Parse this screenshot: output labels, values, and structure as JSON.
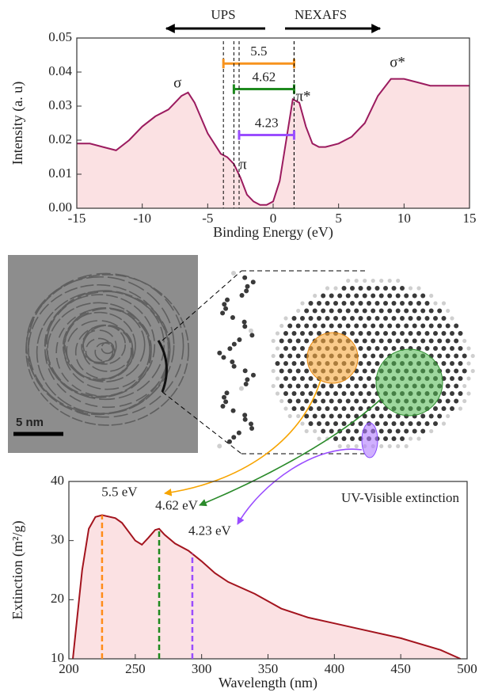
{
  "chart_data": [
    {
      "type": "area",
      "xlabel": "Binding Energy (eV)",
      "ylabel": "Intensity (a. u)",
      "region_labels": [
        "UPS",
        "NEXAFS"
      ],
      "x": [
        -15,
        -14,
        -13,
        -12,
        -11,
        -10,
        -9,
        -8,
        -7,
        -6.5,
        -6,
        -5,
        -4,
        -3.5,
        -3,
        -2.5,
        -2,
        -1.5,
        -1,
        -0.5,
        0,
        0.5,
        1,
        1.5,
        2,
        2.5,
        3,
        3.5,
        4,
        5,
        6,
        7,
        8,
        9,
        10,
        11,
        12,
        13,
        14,
        15
      ],
      "series": [
        {
          "color": "#9b1b5f",
          "fill": "#fbe1e3",
          "values": [
            0.019,
            0.019,
            0.018,
            0.017,
            0.02,
            0.024,
            0.027,
            0.029,
            0.033,
            0.034,
            0.031,
            0.022,
            0.016,
            0.015,
            0.013,
            0.009,
            0.004,
            0.002,
            0.001,
            0.001,
            0.002,
            0.008,
            0.02,
            0.032,
            0.031,
            0.024,
            0.019,
            0.018,
            0.018,
            0.019,
            0.021,
            0.025,
            0.033,
            0.038,
            0.038,
            0.037,
            0.036,
            0.036,
            0.036,
            0.036
          ]
        }
      ],
      "annotations": [
        {
          "text": "σ",
          "x": -7.3,
          "y": 0.0365
        },
        {
          "text": "π",
          "x": -2.3,
          "y": 0.0125
        },
        {
          "text": "π*",
          "x": 2.3,
          "y": 0.0325
        },
        {
          "text": "σ*",
          "x": 9.5,
          "y": 0.0425
        }
      ],
      "gaps": [
        {
          "label": "5.5",
          "color": "#f7931e",
          "from": -3.8,
          "to": 1.6,
          "y": 0.0425
        },
        {
          "label": "4.62",
          "color": "#1e8a1e",
          "from": -3.0,
          "to": 1.6,
          "y": 0.035
        },
        {
          "label": "4.23",
          "color": "#9a4dff",
          "from": -2.6,
          "to": 1.6,
          "y": 0.0215
        }
      ],
      "xlim": [
        -15,
        15
      ],
      "xticks": [
        -15,
        -10,
        -5,
        0,
        5,
        10,
        15
      ],
      "ylim": [
        0,
        0.05
      ],
      "yticks": [
        {
          "value": 0,
          "label": "0.00"
        },
        {
          "value": 0.01,
          "label": "0.01"
        },
        {
          "value": 0.02,
          "label": "0.02"
        },
        {
          "value": 0.03,
          "label": "0.03"
        },
        {
          "value": 0.04,
          "label": "0.04"
        },
        {
          "value": 0.05,
          "label": "0.05"
        }
      ]
    },
    {
      "type": "area",
      "xlabel": "Wavelength (nm)",
      "ylabel": "Extinction (m²/g)",
      "title": "UV-Visible extinction",
      "x": [
        203,
        210,
        215,
        220,
        225,
        235,
        240,
        250,
        255,
        260,
        265,
        268,
        272,
        280,
        290,
        300,
        310,
        320,
        340,
        360,
        380,
        400,
        420,
        450,
        480,
        495
      ],
      "series": [
        {
          "color": "#a3141e",
          "fill": "#fbe1e3",
          "values": [
            10,
            25,
            32,
            34,
            34.3,
            33.8,
            33,
            30,
            29.3,
            30.5,
            31.8,
            32,
            31,
            29.5,
            28.3,
            26.5,
            24.5,
            23,
            21,
            18.5,
            17,
            16,
            15,
            13.5,
            11.5,
            10
          ]
        }
      ],
      "markers": [
        {
          "x": 225,
          "label": "5.5 eV",
          "color": "#ff8c1a"
        },
        {
          "x": 268,
          "label": "4.62 eV",
          "color": "#1e8a1e"
        },
        {
          "x": 293,
          "label": "4.23 eV",
          "color": "#9a4dff"
        }
      ],
      "xlim": [
        200,
        500
      ],
      "xticks": [
        200,
        250,
        300,
        350,
        400,
        450,
        500
      ],
      "ylim": [
        10,
        40
      ],
      "yticks": [
        10,
        20,
        30,
        40
      ]
    }
  ],
  "image": {
    "scale_label": "5 nm"
  }
}
